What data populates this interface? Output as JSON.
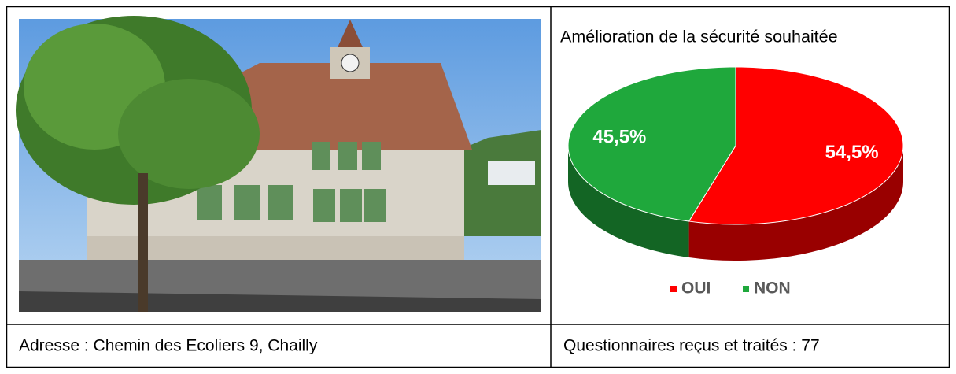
{
  "footer": [
    "Adresse : Chemin des Ecoliers 9, Chailly",
    "Questionnaires reçus et traités : 77"
  ],
  "chart_data": {
    "type": "pie",
    "title": "Amélioration de la sécurité souhaitée",
    "categories": [
      "OUI",
      "NON"
    ],
    "values": [
      54.5,
      45.5
    ],
    "value_labels": [
      "54,5%",
      "45,5%"
    ],
    "colors": [
      "#ff0000",
      "#1fa83c"
    ],
    "legend": "bottom"
  }
}
